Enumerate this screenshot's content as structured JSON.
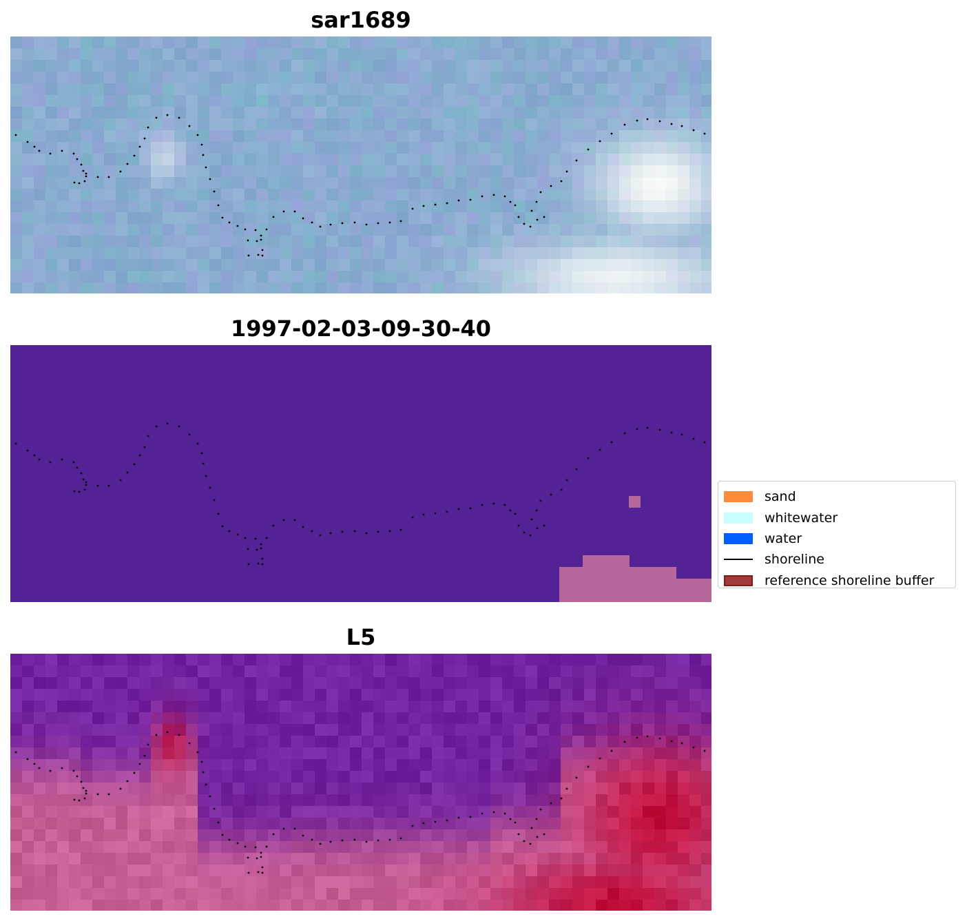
{
  "panels": [
    {
      "title": "sar1689",
      "kind": "rgb-image"
    },
    {
      "title": "1997-02-03-09-30-40",
      "kind": "classification"
    },
    {
      "title": "L5",
      "kind": "index-image"
    }
  ],
  "legend": {
    "placement": "right-center",
    "items": [
      {
        "label": "sand",
        "type": "patch",
        "color": "#ff8c3a"
      },
      {
        "label": "whitewater",
        "type": "patch",
        "color": "#c8ffff"
      },
      {
        "label": "water",
        "type": "patch",
        "color": "#0060ff"
      },
      {
        "label": "shoreline",
        "type": "line",
        "color": "#000000"
      },
      {
        "label": "reference shoreline buffer",
        "type": "patch",
        "color": "#a33a3a",
        "edge": "#7a1f1f"
      }
    ]
  },
  "colors": {
    "classification_background": "#532395",
    "classification_patch": "#b5669b",
    "shoreline_dots": "#000000"
  }
}
